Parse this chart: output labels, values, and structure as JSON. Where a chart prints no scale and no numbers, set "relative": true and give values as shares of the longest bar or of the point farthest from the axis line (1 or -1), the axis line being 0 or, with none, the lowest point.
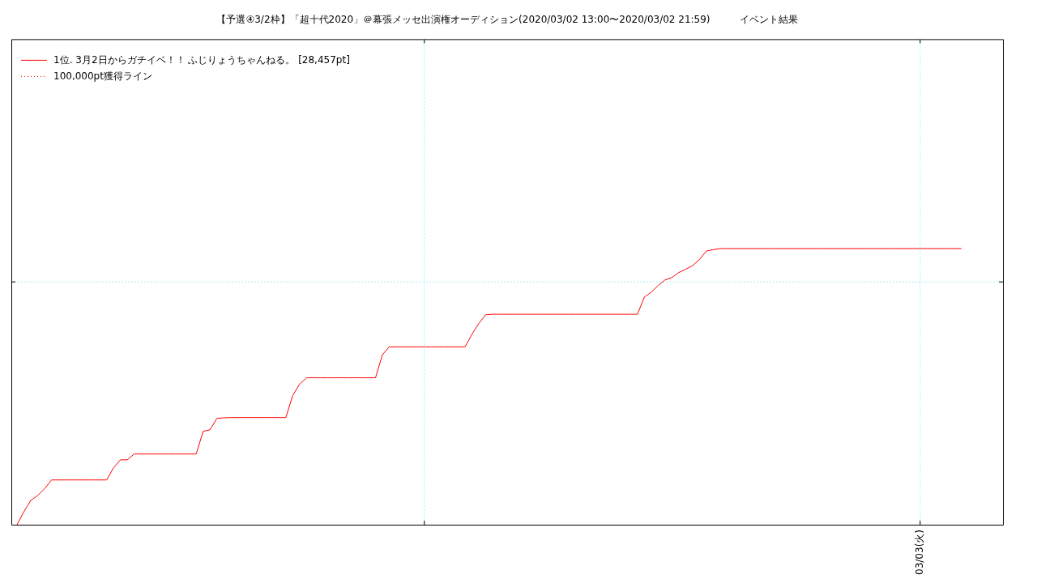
{
  "chart_data": {
    "type": "line",
    "title": "【予選④3/2枠】「超十代2020」＠幕張メッセ出演権オーディション(2020/03/02 13:00〜2020/03/02 21:59)　　　イベント結果",
    "relative": true,
    "categories": [
      null,
      null,
      null,
      null,
      null,
      null,
      null,
      null,
      null,
      null,
      null,
      null,
      null,
      null,
      null,
      null,
      null,
      null,
      null,
      null,
      null,
      null,
      null,
      null,
      null,
      null,
      null,
      null,
      null,
      null,
      null,
      null,
      null,
      null,
      null,
      null,
      null,
      null,
      null,
      null,
      null,
      null,
      null,
      null,
      null,
      null,
      null,
      null,
      null,
      null,
      null,
      null,
      null,
      null,
      null,
      null,
      null,
      null,
      null,
      null,
      null,
      null,
      null,
      null,
      null,
      null,
      null,
      null,
      null,
      null,
      null,
      null,
      null,
      null,
      null,
      null,
      null,
      null,
      null,
      null,
      null,
      null,
      null,
      null,
      null,
      null,
      null,
      null,
      null,
      null,
      null,
      null,
      null,
      null,
      null,
      null,
      null,
      null,
      null,
      null,
      null,
      null,
      null,
      null,
      null,
      null,
      null,
      null,
      null,
      null,
      null,
      null,
      null,
      null,
      null,
      null,
      null,
      null,
      null,
      null,
      null,
      null,
      null,
      null,
      null,
      null,
      null,
      null,
      null,
      null,
      null,
      null,
      null,
      null,
      null,
      null,
      null,
      null
    ],
    "annotations": [
      "03/03(火)"
    ],
    "grid": true,
    "legend": "top left",
    "series": [
      {
        "name": "1位. 3月2日からガチイベ！！ ふじりょうちゃんねる。 [28,457pt]",
        "color": "#ff0000",
        "line_style": "solid",
        "values": [
          0,
          0.047,
          0.088,
          0.106,
          0.13,
          0.162,
          0.162,
          0.162,
          0.162,
          0.162,
          0.162,
          0.162,
          0.162,
          0.162,
          0.206,
          0.235,
          0.235,
          0.256,
          0.256,
          0.256,
          0.256,
          0.256,
          0.256,
          0.256,
          0.256,
          0.256,
          0.256,
          0.338,
          0.344,
          0.385,
          0.387,
          0.388,
          0.388,
          0.388,
          0.388,
          0.388,
          0.388,
          0.388,
          0.388,
          0.388,
          0.468,
          0.509,
          0.532,
          0.532,
          0.532,
          0.532,
          0.532,
          0.532,
          0.532,
          0.532,
          0.532,
          0.532,
          0.532,
          0.615,
          0.644,
          0.644,
          0.644,
          0.644,
          0.644,
          0.644,
          0.644,
          0.644,
          0.644,
          0.644,
          0.644,
          0.644,
          0.69,
          0.729,
          0.76,
          0.762,
          0.762,
          0.762,
          0.762,
          0.762,
          0.762,
          0.762,
          0.762,
          0.762,
          0.762,
          0.762,
          0.762,
          0.762,
          0.762,
          0.762,
          0.762,
          0.762,
          0.762,
          0.762,
          0.762,
          0.762,
          0.762,
          0.824,
          0.842,
          0.866,
          0.886,
          0.895,
          0.913,
          0.925,
          0.938,
          0.96,
          0.991,
          0.996,
          1,
          1,
          1,
          1,
          1,
          1,
          1,
          1,
          1,
          1,
          1,
          1,
          1,
          1,
          1,
          1,
          1,
          1,
          1,
          1,
          1,
          1,
          1,
          1,
          1,
          1,
          1,
          1,
          1,
          1,
          1,
          1,
          1,
          1,
          1,
          1
        ]
      },
      {
        "name": "100,000pt獲得ライン",
        "color": "#ff0000",
        "line_style": "dotted",
        "values": [
          null,
          null,
          null,
          null,
          null,
          null,
          null,
          null,
          null,
          null,
          null,
          null,
          null,
          null,
          null,
          null,
          null,
          null,
          null,
          null,
          null,
          null,
          null,
          null,
          null,
          null,
          null,
          null,
          null,
          null,
          null,
          null,
          null,
          null,
          null,
          null,
          null,
          null,
          null,
          null,
          null,
          null,
          null,
          null,
          null,
          null,
          null,
          null,
          null,
          null,
          null,
          null,
          null,
          null,
          null,
          null,
          null,
          null,
          null,
          null,
          null,
          null,
          null,
          null,
          null,
          null,
          null,
          null,
          null,
          null,
          null,
          null,
          null,
          null,
          null,
          null,
          null,
          null,
          null,
          null,
          null,
          null,
          null,
          null,
          null,
          null,
          null,
          null,
          null,
          null,
          null,
          null,
          null,
          null,
          null,
          null,
          null,
          null,
          null,
          null,
          null,
          null,
          null,
          null,
          null,
          null,
          null,
          null,
          null,
          null,
          null,
          null,
          null,
          null,
          null,
          null,
          null,
          null,
          null,
          null,
          null,
          null,
          null,
          null,
          null,
          null,
          null,
          null,
          null,
          null,
          null,
          null,
          null,
          null,
          null,
          null,
          null,
          null
        ]
      }
    ]
  }
}
